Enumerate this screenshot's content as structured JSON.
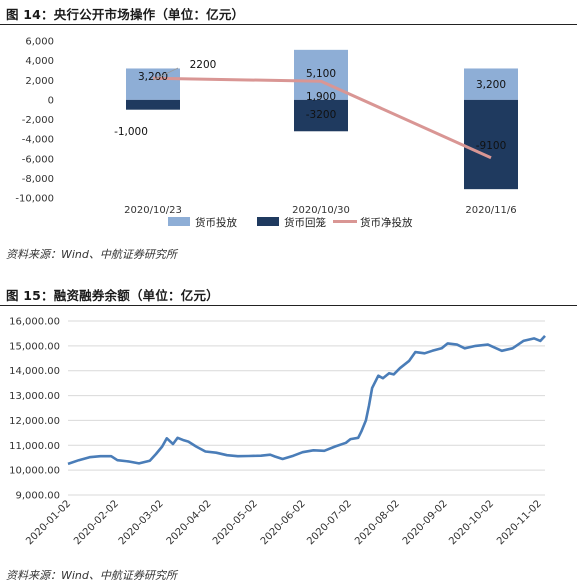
{
  "figure1": {
    "title": "图 14：央行公开市场操作（单位：亿元）",
    "source": "资料来源：Wind、中航证券研究所"
  },
  "figure2": {
    "title": "图 15：融资融券余额（单位：亿元）",
    "source": "资料来源：Wind、中航证券研究所"
  },
  "colors": {
    "injection": "#8eaed6",
    "withdrawal": "#1f3a5f",
    "net": "#d99694",
    "line2": "#4a7db8"
  },
  "chart_data": [
    {
      "type": "bar",
      "title": "",
      "categories": [
        "2020/10/23",
        "2020/10/30",
        "2020/11/6"
      ],
      "series": [
        {
          "name": "货币投放",
          "values": [
            3200,
            5100,
            3200
          ],
          "labels": [
            "3,200",
            "5,100",
            "3,200"
          ]
        },
        {
          "name": "货币回笼",
          "values": [
            -1000,
            -3200,
            -9100
          ],
          "labels": [
            "-1,000",
            "-3200",
            "-9100"
          ]
        },
        {
          "name": "货币净投放",
          "type": "line",
          "values": [
            2200,
            1900,
            -5900
          ],
          "labels": [
            "2200",
            "1,900",
            ""
          ]
        }
      ],
      "y_ticks": [
        "6,000",
        "4,000",
        "2,000",
        "0",
        "-2,000",
        "-4,000",
        "-6,000",
        "-8,000",
        "-10,000"
      ],
      "ylim": [
        -10000,
        6000
      ],
      "legend": "bottom"
    },
    {
      "type": "line",
      "title": "",
      "series": [
        {
          "name": "融资融券余额",
          "points": [
            [
              "2020-01-02",
              10250
            ],
            [
              "2020-01-09",
              10400
            ],
            [
              "2020-01-16",
              10520
            ],
            [
              "2020-01-23",
              10560
            ],
            [
              "2020-01-30",
              10560
            ],
            [
              "2020-02-03",
              10400
            ],
            [
              "2020-02-10",
              10350
            ],
            [
              "2020-02-17",
              10270
            ],
            [
              "2020-02-24",
              10380
            ],
            [
              "2020-02-28",
              10650
            ],
            [
              "2020-03-03",
              10950
            ],
            [
              "2020-03-06",
              11280
            ],
            [
              "2020-03-10",
              11050
            ],
            [
              "2020-03-13",
              11300
            ],
            [
              "2020-03-17",
              11200
            ],
            [
              "2020-03-20",
              11150
            ],
            [
              "2020-03-25",
              10950
            ],
            [
              "2020-03-31",
              10750
            ],
            [
              "2020-04-07",
              10700
            ],
            [
              "2020-04-14",
              10600
            ],
            [
              "2020-04-21",
              10560
            ],
            [
              "2020-04-28",
              10570
            ],
            [
              "2020-05-06",
              10580
            ],
            [
              "2020-05-12",
              10620
            ],
            [
              "2020-05-15",
              10550
            ],
            [
              "2020-05-20",
              10450
            ],
            [
              "2020-05-27",
              10580
            ],
            [
              "2020-06-02",
              10720
            ],
            [
              "2020-06-09",
              10800
            ],
            [
              "2020-06-16",
              10780
            ],
            [
              "2020-06-23",
              10950
            ],
            [
              "2020-06-30",
              11100
            ],
            [
              "2020-07-03",
              11250
            ],
            [
              "2020-07-08",
              11300
            ],
            [
              "2020-07-10",
              11550
            ],
            [
              "2020-07-13",
              12000
            ],
            [
              "2020-07-15",
              12600
            ],
            [
              "2020-07-17",
              13300
            ],
            [
              "2020-07-21",
              13800
            ],
            [
              "2020-07-24",
              13700
            ],
            [
              "2020-07-28",
              13900
            ],
            [
              "2020-07-31",
              13850
            ],
            [
              "2020-08-04",
              14100
            ],
            [
              "2020-08-10",
              14400
            ],
            [
              "2020-08-14",
              14750
            ],
            [
              "2020-08-20",
              14700
            ],
            [
              "2020-08-25",
              14800
            ],
            [
              "2020-08-31",
              14900
            ],
            [
              "2020-09-04",
              15100
            ],
            [
              "2020-09-10",
              15050
            ],
            [
              "2020-09-15",
              14900
            ],
            [
              "2020-09-22",
              15000
            ],
            [
              "2020-09-30",
              15050
            ],
            [
              "2020-10-09",
              14800
            ],
            [
              "2020-10-16",
              14900
            ],
            [
              "2020-10-23",
              15200
            ],
            [
              "2020-10-30",
              15300
            ],
            [
              "2020-11-03",
              15200
            ],
            [
              "2020-11-06",
              15400
            ]
          ]
        }
      ],
      "x_ticks": [
        "2020-01-02",
        "2020-02-02",
        "2020-03-02",
        "2020-04-02",
        "2020-05-02",
        "2020-06-02",
        "2020-07-02",
        "2020-08-02",
        "2020-09-02",
        "2020-10-02",
        "2020-11-02"
      ],
      "y_ticks": [
        "16,000.00",
        "15,000.00",
        "14,000.00",
        "13,000.00",
        "12,000.00",
        "11,000.00",
        "10,000.00",
        "9,000.00"
      ],
      "ylim": [
        9000,
        16000
      ],
      "grid": true
    }
  ]
}
